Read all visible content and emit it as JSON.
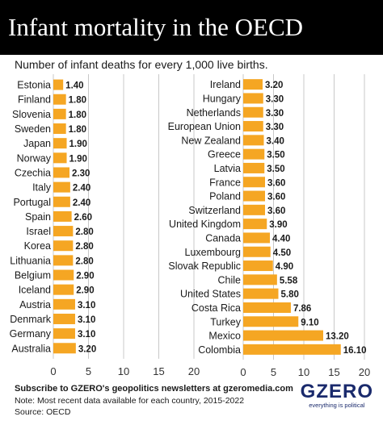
{
  "title": "Infant mortality in the OECD",
  "subtitle": "Number of infant deaths for every 1,000 live births.",
  "footer": {
    "cta": "Subscribe to GZERO's geopolitics newsletters at gzeromedia.com",
    "note": "Note: Most recent data available for each country, 2015-2022",
    "source": "Source: OECD"
  },
  "logo": {
    "word": "GZERO",
    "tagline": "everything is political"
  },
  "colors": {
    "bar": "#F5A623",
    "header_bg": "#000000",
    "grid": "#bbbbbb",
    "logo": "#1a2a6c"
  },
  "chart_data": [
    {
      "type": "bar",
      "orientation": "horizontal",
      "categories": [
        "Estonia",
        "Finland",
        "Slovenia",
        "Sweden",
        "Japan",
        "Norway",
        "Czechia",
        "Italy",
        "Portugal",
        "Spain",
        "Israel",
        "Korea",
        "Lithuania",
        "Belgium",
        "Iceland",
        "Austria",
        "Denmark",
        "Germany",
        "Australia"
      ],
      "values": [
        1.4,
        1.8,
        1.8,
        1.8,
        1.9,
        1.9,
        2.3,
        2.4,
        2.4,
        2.6,
        2.8,
        2.8,
        2.8,
        2.9,
        2.9,
        3.1,
        3.1,
        3.1,
        3.2
      ],
      "value_labels": [
        "1.40",
        "1.80",
        "1.80",
        "1.80",
        "1.90",
        "1.90",
        "2.30",
        "2.40",
        "2.40",
        "2.60",
        "2.80",
        "2.80",
        "2.80",
        "2.90",
        "2.90",
        "3.10",
        "3.10",
        "3.10",
        "3.20"
      ],
      "xlim": [
        0,
        20
      ],
      "xticks": [
        "0",
        "5",
        "10",
        "15",
        "20"
      ],
      "grid": true
    },
    {
      "type": "bar",
      "orientation": "horizontal",
      "categories": [
        "Ireland",
        "Hungary",
        "Netherlands",
        "European Union",
        "New Zealand",
        "Greece",
        "Latvia",
        "France",
        "Poland",
        "Switzerland",
        "United Kingdom",
        "Canada",
        "Luxembourg",
        "Slovak Republic",
        "Chile",
        "United States",
        "Costa Rica",
        "Turkey",
        "Mexico",
        "Colombia"
      ],
      "values": [
        3.2,
        3.3,
        3.3,
        3.3,
        3.4,
        3.5,
        3.5,
        3.6,
        3.6,
        3.6,
        3.9,
        4.4,
        4.5,
        4.9,
        5.58,
        5.8,
        7.86,
        9.1,
        13.2,
        16.1
      ],
      "value_labels": [
        "3.20",
        "3.30",
        "3.30",
        "3.30",
        "3.40",
        "3.50",
        "3.50",
        "3.60",
        "3.60",
        "3.60",
        "3.90",
        "4.40",
        "4.50",
        "4.90",
        "5.58",
        "5.80",
        "7.86",
        "9.10",
        "13.20",
        "16.10"
      ],
      "xlim": [
        0,
        20
      ],
      "xticks": [
        "0",
        "5",
        "10",
        "15",
        "20"
      ],
      "grid": true
    }
  ]
}
